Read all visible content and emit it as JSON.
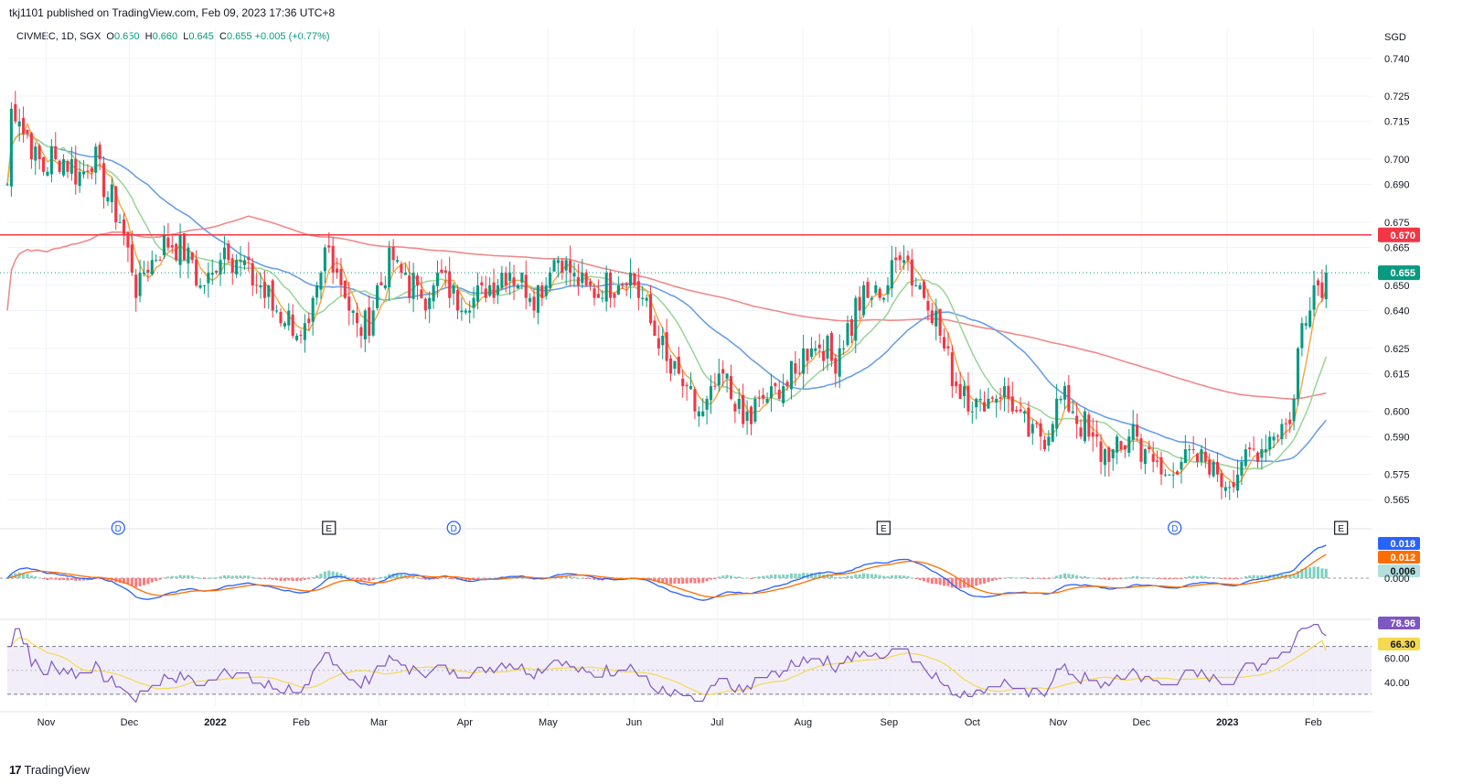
{
  "header": {
    "publish_line": "tkj1101 published on TradingView.com, Feb 09, 2023 17:36 UTC+8"
  },
  "legend": {
    "symbol": "CIVMEC, 1D, SGX",
    "o_label": "O",
    "o_value": "0.650",
    "h_label": "H",
    "h_value": "0.660",
    "l_label": "L",
    "l_value": "0.645",
    "c_label": "C",
    "c_value": "0.655",
    "change": "+0.005 (+0.77%)"
  },
  "footer": {
    "logo_text": "TradingView",
    "logo_glyph": "17"
  },
  "colors": {
    "up": "#089981",
    "down": "#f23645",
    "resistance": "#f23645",
    "ma_short": "#f7a43a",
    "ma_mid": "#9fd59c",
    "ma_long_blue": "#6b9fe8",
    "ma_200": "#f08a8a",
    "macd": "#2962ff",
    "signal": "#ff6d00",
    "rsi": "#7e57c2",
    "rsi_ma": "#f5d94e"
  },
  "chart_data": [
    {
      "type": "candlestick",
      "currency": "SGD",
      "ylim": [
        0.56,
        0.745
      ],
      "y_ticks": [
        "0.740",
        "0.725",
        "0.715",
        "0.700",
        "0.690",
        "0.675",
        "0.665",
        "0.650",
        "0.640",
        "0.625",
        "0.615",
        "0.600",
        "0.590",
        "0.575",
        "0.565"
      ],
      "x_ticks": [
        "Nov",
        "Dec",
        "2022",
        "Feb",
        "Mar",
        "Apr",
        "May",
        "Jun",
        "Jul",
        "Aug",
        "Sep",
        "Oct",
        "Nov",
        "Dec",
        "2023",
        "Feb"
      ],
      "x_tick_days": [
        0,
        30,
        61,
        92,
        120,
        151,
        181,
        212,
        242,
        273,
        304,
        334,
        365,
        395,
        426,
        457
      ],
      "resistance_level": 0.67,
      "resistance_label": "0.670",
      "last_price": 0.655,
      "last_price_label": "0.655",
      "moving_averages": [
        "short MA (orange)",
        "medium MA (green)",
        "50-day MA (blue)",
        "200-day MA (red)"
      ],
      "events": [
        {
          "label": "D",
          "kind": "dividend",
          "day": 26
        },
        {
          "label": "E",
          "kind": "earnings",
          "day": 102
        },
        {
          "label": "D",
          "kind": "dividend",
          "day": 147
        },
        {
          "label": "E",
          "kind": "earnings",
          "day": 302
        },
        {
          "label": "D",
          "kind": "dividend",
          "day": 407
        },
        {
          "label": "E",
          "kind": "earnings",
          "day": 467
        }
      ],
      "price_path": [
        [
          -14,
          0.69
        ],
        [
          -13,
          0.72
        ],
        [
          -9,
          0.715
        ],
        [
          -5,
          0.705
        ],
        [
          -2,
          0.698
        ],
        [
          3,
          0.7
        ],
        [
          8,
          0.697
        ],
        [
          13,
          0.695
        ],
        [
          18,
          0.7
        ],
        [
          22,
          0.688
        ],
        [
          26,
          0.676
        ],
        [
          30,
          0.66
        ],
        [
          33,
          0.648
        ],
        [
          36,
          0.655
        ],
        [
          40,
          0.665
        ],
        [
          44,
          0.668
        ],
        [
          48,
          0.665
        ],
        [
          52,
          0.66
        ],
        [
          56,
          0.65
        ],
        [
          60,
          0.655
        ],
        [
          64,
          0.665
        ],
        [
          68,
          0.662
        ],
        [
          72,
          0.655
        ],
        [
          76,
          0.65
        ],
        [
          80,
          0.645
        ],
        [
          84,
          0.64
        ],
        [
          88,
          0.635
        ],
        [
          92,
          0.628
        ],
        [
          95,
          0.632
        ],
        [
          98,
          0.648
        ],
        [
          101,
          0.665
        ],
        [
          104,
          0.66
        ],
        [
          107,
          0.65
        ],
        [
          110,
          0.64
        ],
        [
          113,
          0.63
        ],
        [
          116,
          0.635
        ],
        [
          120,
          0.65
        ],
        [
          124,
          0.66
        ],
        [
          128,
          0.655
        ],
        [
          132,
          0.65
        ],
        [
          136,
          0.645
        ],
        [
          140,
          0.65
        ],
        [
          144,
          0.653
        ],
        [
          148,
          0.646
        ],
        [
          152,
          0.643
        ],
        [
          156,
          0.646
        ],
        [
          160,
          0.65
        ],
        [
          164,
          0.656
        ],
        [
          168,
          0.655
        ],
        [
          172,
          0.65
        ],
        [
          176,
          0.646
        ],
        [
          180,
          0.652
        ],
        [
          184,
          0.665
        ],
        [
          188,
          0.655
        ],
        [
          192,
          0.65
        ],
        [
          196,
          0.648
        ],
        [
          200,
          0.648
        ],
        [
          204,
          0.65
        ],
        [
          208,
          0.655
        ],
        [
          212,
          0.65
        ],
        [
          216,
          0.64
        ],
        [
          220,
          0.63
        ],
        [
          224,
          0.62
        ],
        [
          228,
          0.612
        ],
        [
          232,
          0.605
        ],
        [
          236,
          0.598
        ],
        [
          240,
          0.605
        ],
        [
          244,
          0.612
        ],
        [
          248,
          0.605
        ],
        [
          252,
          0.595
        ],
        [
          256,
          0.6
        ],
        [
          260,
          0.605
        ],
        [
          264,
          0.608
        ],
        [
          268,
          0.612
        ],
        [
          272,
          0.618
        ],
        [
          276,
          0.628
        ],
        [
          280,
          0.625
        ],
        [
          284,
          0.62
        ],
        [
          288,
          0.628
        ],
        [
          292,
          0.64
        ],
        [
          296,
          0.645
        ],
        [
          300,
          0.648
        ],
        [
          304,
          0.65
        ],
        [
          308,
          0.665
        ],
        [
          312,
          0.655
        ],
        [
          316,
          0.648
        ],
        [
          320,
          0.64
        ],
        [
          324,
          0.625
        ],
        [
          328,
          0.612
        ],
        [
          332,
          0.608
        ],
        [
          336,
          0.602
        ],
        [
          340,
          0.605
        ],
        [
          344,
          0.61
        ],
        [
          348,
          0.603
        ],
        [
          352,
          0.595
        ],
        [
          356,
          0.59
        ],
        [
          360,
          0.592
        ],
        [
          364,
          0.6
        ],
        [
          368,
          0.606
        ],
        [
          372,
          0.598
        ],
        [
          376,
          0.59
        ],
        [
          380,
          0.585
        ],
        [
          384,
          0.582
        ],
        [
          388,
          0.586
        ],
        [
          392,
          0.592
        ],
        [
          396,
          0.585
        ],
        [
          400,
          0.578
        ],
        [
          404,
          0.575
        ],
        [
          408,
          0.58
        ],
        [
          412,
          0.583
        ],
        [
          416,
          0.58
        ],
        [
          420,
          0.578
        ],
        [
          424,
          0.575
        ],
        [
          428,
          0.572
        ],
        [
          432,
          0.578
        ],
        [
          436,
          0.585
        ],
        [
          440,
          0.588
        ],
        [
          444,
          0.592
        ],
        [
          448,
          0.598
        ],
        [
          450,
          0.605
        ],
        [
          452,
          0.63
        ],
        [
          455,
          0.645
        ],
        [
          458,
          0.65
        ],
        [
          461,
          0.652
        ],
        [
          463,
          0.655
        ]
      ]
    },
    {
      "type": "macd",
      "labels": {
        "macd": "0.018",
        "signal": "0.012",
        "histogram": "0.006",
        "zero": "0.000"
      },
      "values": {
        "macd": 0.018,
        "signal": 0.012,
        "histogram": 0.006
      }
    },
    {
      "type": "rsi",
      "labels": {
        "rsi": "78.96",
        "rsi_ma": "66.30",
        "upper": "60.00",
        "lower": "40.00"
      },
      "values": {
        "rsi": 78.96,
        "rsi_ma": 66.3
      },
      "bands": [
        70,
        30
      ]
    }
  ]
}
